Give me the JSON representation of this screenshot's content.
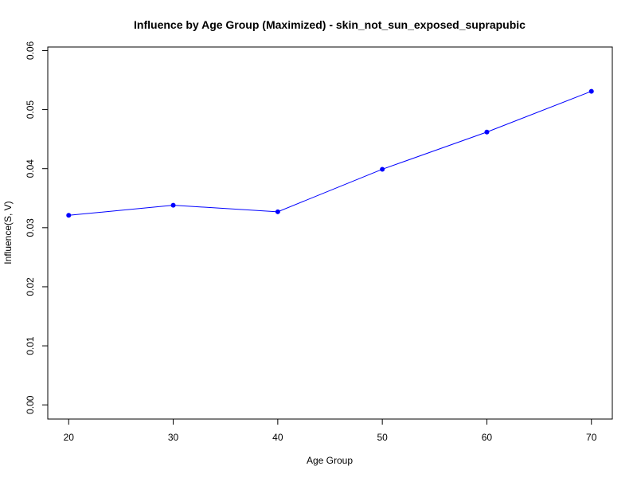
{
  "chart_data": {
    "type": "line",
    "title": "Influence by Age Group (Maximized) - skin_not_sun_exposed_suprapubic",
    "xlabel": "Age Group",
    "ylabel": "Influence(S, V)",
    "x": [
      20,
      30,
      40,
      50,
      60,
      70
    ],
    "series": [
      {
        "values": [
          0.0321,
          0.0338,
          0.0327,
          0.0399,
          0.0462,
          0.0531
        ]
      }
    ],
    "xlim": [
      18,
      72
    ],
    "ylim": [
      -0.0024,
      0.0606
    ],
    "x_ticks": [
      20,
      30,
      40,
      50,
      60,
      70
    ],
    "x_tick_labels": [
      "20",
      "30",
      "40",
      "50",
      "60",
      "70"
    ],
    "y_ticks": [
      0.0,
      0.01,
      0.02,
      0.03,
      0.04,
      0.05,
      0.06
    ],
    "y_tick_labels": [
      "0.00",
      "0.01",
      "0.02",
      "0.03",
      "0.04",
      "0.05",
      "0.06"
    ],
    "grid": false,
    "line_color": "#0000ff",
    "point_color": "#0000ff"
  }
}
